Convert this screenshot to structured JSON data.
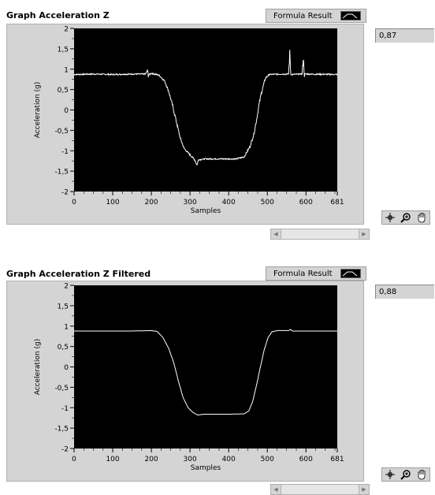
{
  "graphs": [
    {
      "title": "Graph Acceleration Z",
      "legend_label": "Formula Result",
      "indicator_value": "0,87",
      "chart_data": {
        "type": "line",
        "xlabel": "Samples",
        "ylabel": "Acceleration (g)",
        "xlim": [
          0,
          681
        ],
        "ylim": [
          -2,
          2
        ],
        "x_ticks": [
          "0",
          "100",
          "200",
          "300",
          "400",
          "500",
          "600",
          "681"
        ],
        "y_ticks": [
          "2",
          "1,5",
          "1",
          "0,5",
          "0",
          "-0,5",
          "-1",
          "-1,5",
          "-2"
        ],
        "background": "#000000",
        "line_color": "#ffffff",
        "series": [
          {
            "noisy": true,
            "points": [
              [
                0,
                0.87
              ],
              [
                50,
                0.88
              ],
              [
                100,
                0.87
              ],
              [
                150,
                0.88
              ],
              [
                185,
                0.88
              ],
              [
                190,
                0.97
              ],
              [
                192,
                0.85
              ],
              [
                200,
                0.9
              ],
              [
                220,
                0.85
              ],
              [
                235,
                0.7
              ],
              [
                245,
                0.45
              ],
              [
                255,
                0.1
              ],
              [
                265,
                -0.3
              ],
              [
                275,
                -0.7
              ],
              [
                285,
                -0.95
              ],
              [
                295,
                -1.05
              ],
              [
                305,
                -1.15
              ],
              [
                312,
                -1.22
              ],
              [
                318,
                -1.35
              ],
              [
                322,
                -1.22
              ],
              [
                340,
                -1.2
              ],
              [
                380,
                -1.2
              ],
              [
                420,
                -1.2
              ],
              [
                440,
                -1.15
              ],
              [
                455,
                -0.9
              ],
              [
                465,
                -0.6
              ],
              [
                472,
                -0.25
              ],
              [
                478,
                0.1
              ],
              [
                484,
                0.4
              ],
              [
                490,
                0.6
              ],
              [
                495,
                0.78
              ],
              [
                505,
                0.87
              ],
              [
                540,
                0.88
              ],
              [
                555,
                0.88
              ],
              [
                558,
                1.38
              ],
              [
                561,
                0.87
              ],
              [
                590,
                0.88
              ],
              [
                593,
                1.28
              ],
              [
                596,
                0.88
              ],
              [
                681,
                0.87
              ]
            ]
          }
        ]
      }
    },
    {
      "title": "Graph Acceleration Z Filtered",
      "legend_label": "Formula Result",
      "indicator_value": "0,88",
      "chart_data": {
        "type": "line",
        "xlabel": "Samples",
        "ylabel": "Acceleration (g)",
        "xlim": [
          0,
          681
        ],
        "ylim": [
          -2,
          2
        ],
        "x_ticks": [
          "0",
          "100",
          "200",
          "300",
          "400",
          "500",
          "600",
          "681"
        ],
        "y_ticks": [
          "2",
          "1,5",
          "1",
          "0,5",
          "0",
          "-0,5",
          "-1",
          "-1,5",
          "-2"
        ],
        "background": "#000000",
        "line_color": "#ffffff",
        "series": [
          {
            "noisy": false,
            "points": [
              [
                0,
                0.88
              ],
              [
                50,
                0.88
              ],
              [
                100,
                0.88
              ],
              [
                150,
                0.88
              ],
              [
                200,
                0.89
              ],
              [
                215,
                0.87
              ],
              [
                230,
                0.72
              ],
              [
                245,
                0.45
              ],
              [
                258,
                0.1
              ],
              [
                270,
                -0.35
              ],
              [
                282,
                -0.75
              ],
              [
                295,
                -1.0
              ],
              [
                308,
                -1.12
              ],
              [
                320,
                -1.18
              ],
              [
                335,
                -1.16
              ],
              [
                360,
                -1.16
              ],
              [
                400,
                -1.16
              ],
              [
                440,
                -1.15
              ],
              [
                452,
                -1.08
              ],
              [
                462,
                -0.85
              ],
              [
                472,
                -0.45
              ],
              [
                482,
                0.0
              ],
              [
                492,
                0.42
              ],
              [
                502,
                0.72
              ],
              [
                512,
                0.86
              ],
              [
                525,
                0.89
              ],
              [
                555,
                0.89
              ],
              [
                560,
                0.92
              ],
              [
                565,
                0.88
              ],
              [
                600,
                0.88
              ],
              [
                681,
                0.88
              ]
            ]
          }
        ]
      }
    }
  ],
  "icons": {
    "cursor": "crosshair-cursor-icon",
    "zoom": "zoom-icon",
    "pan": "pan-hand-icon"
  }
}
